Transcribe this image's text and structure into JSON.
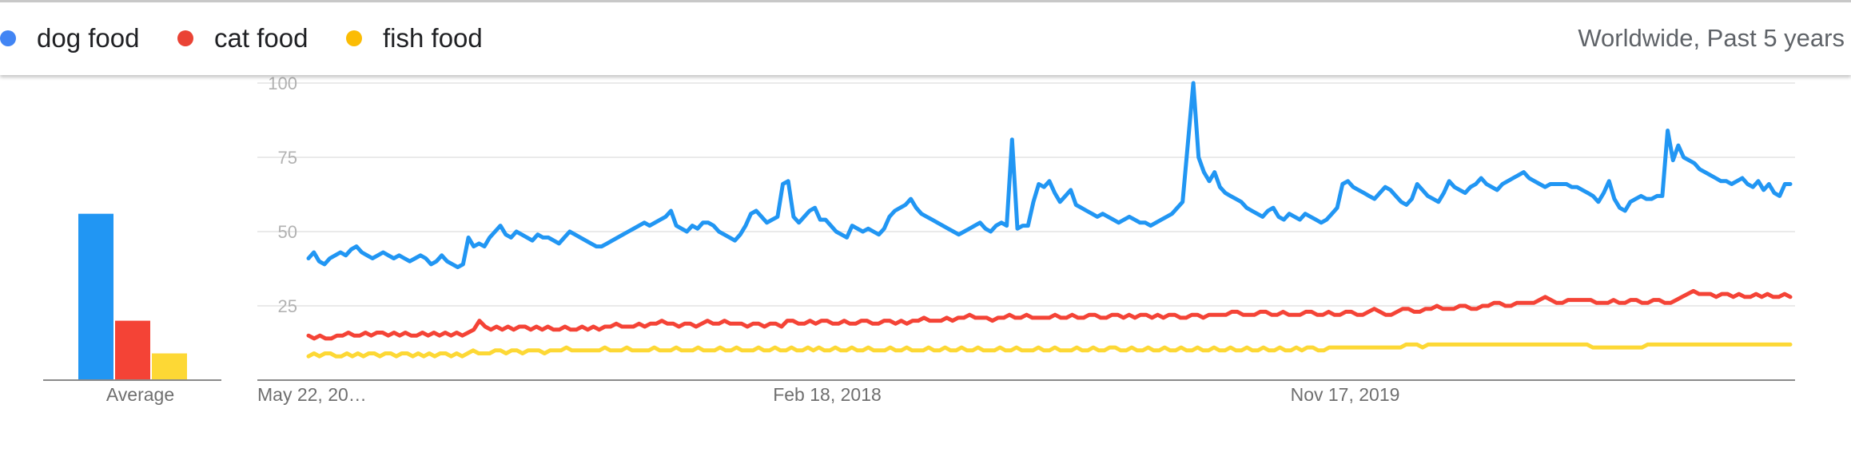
{
  "legend": {
    "scope": "Worldwide, Past 5 years",
    "items": [
      {
        "label": "dog food",
        "color": "#4285f4"
      },
      {
        "label": "cat food",
        "color": "#ea4335"
      },
      {
        "label": "fish food",
        "color": "#fbbc04"
      }
    ]
  },
  "chart_data": [
    {
      "type": "bar",
      "categories": [
        "dog food",
        "cat food",
        "fish food"
      ],
      "values": [
        56,
        20,
        9
      ],
      "xlabel": "Average",
      "ylim": [
        0,
        100
      ],
      "colors": [
        "#2196f3",
        "#f44336",
        "#fdd835"
      ]
    },
    {
      "type": "line",
      "x_ticks": [
        "May 22, 20…",
        "Feb 18, 2018",
        "Nov 17, 2019"
      ],
      "y_ticks": [
        25,
        50,
        75,
        100
      ],
      "ylim": [
        0,
        100
      ],
      "grid": true,
      "series": [
        {
          "name": "dog food",
          "color": "#2196f3",
          "values": [
            41,
            43,
            40,
            39,
            41,
            42,
            43,
            42,
            44,
            45,
            43,
            42,
            41,
            42,
            43,
            42,
            41,
            42,
            41,
            40,
            41,
            42,
            41,
            39,
            40,
            42,
            40,
            39,
            38,
            39,
            48,
            45,
            46,
            45,
            48,
            50,
            52,
            49,
            48,
            50,
            49,
            48,
            47,
            49,
            48,
            48,
            47,
            46,
            48,
            50,
            49,
            48,
            47,
            46,
            45,
            45,
            46,
            47,
            48,
            49,
            50,
            51,
            52,
            53,
            52,
            53,
            54,
            55,
            57,
            52,
            51,
            50,
            52,
            51,
            53,
            53,
            52,
            50,
            49,
            48,
            47,
            49,
            52,
            56,
            57,
            55,
            53,
            54,
            55,
            66,
            67,
            55,
            53,
            55,
            57,
            58,
            54,
            54,
            52,
            50,
            49,
            48,
            52,
            51,
            50,
            51,
            50,
            49,
            51,
            55,
            57,
            58,
            59,
            61,
            58,
            56,
            55,
            54,
            53,
            52,
            51,
            50,
            49,
            50,
            51,
            52,
            53,
            51,
            50,
            52,
            53,
            52,
            81,
            51,
            52,
            52,
            60,
            66,
            65,
            67,
            63,
            60,
            62,
            64,
            59,
            58,
            57,
            56,
            55,
            56,
            55,
            54,
            53,
            54,
            55,
            54,
            53,
            53,
            52,
            53,
            54,
            55,
            56,
            58,
            60,
            80,
            100,
            75,
            70,
            67,
            70,
            65,
            63,
            62,
            61,
            60,
            58,
            57,
            56,
            55,
            57,
            58,
            55,
            54,
            56,
            55,
            54,
            56,
            55,
            54,
            53,
            54,
            56,
            58,
            66,
            67,
            65,
            64,
            63,
            62,
            61,
            63,
            65,
            64,
            62,
            60,
            59,
            61,
            66,
            64,
            62,
            61,
            60,
            63,
            67,
            65,
            64,
            63,
            65,
            66,
            68,
            66,
            65,
            64,
            66,
            67,
            68,
            69,
            70,
            68,
            67,
            66,
            65,
            66,
            66,
            66,
            66,
            65,
            65,
            64,
            63,
            62,
            60,
            63,
            67,
            61,
            58,
            57,
            60,
            61,
            62,
            61,
            61,
            62,
            62,
            84,
            74,
            79,
            75,
            74,
            73,
            71,
            70,
            69,
            68,
            67,
            67,
            66,
            67,
            68,
            66,
            65,
            67,
            64,
            66,
            63,
            62,
            66,
            66
          ]
        },
        {
          "name": "cat food",
          "color": "#f44336",
          "values": [
            15,
            14,
            15,
            14,
            14,
            15,
            15,
            16,
            15,
            15,
            16,
            15,
            16,
            16,
            15,
            16,
            15,
            16,
            15,
            15,
            16,
            15,
            16,
            15,
            16,
            15,
            16,
            15,
            16,
            17,
            20,
            18,
            17,
            18,
            17,
            18,
            17,
            18,
            18,
            17,
            18,
            17,
            18,
            17,
            17,
            18,
            17,
            17,
            18,
            17,
            18,
            17,
            18,
            18,
            19,
            18,
            18,
            18,
            19,
            18,
            19,
            19,
            20,
            19,
            19,
            18,
            19,
            19,
            18,
            19,
            20,
            19,
            19,
            20,
            19,
            19,
            19,
            18,
            19,
            19,
            18,
            19,
            19,
            18,
            20,
            20,
            19,
            19,
            20,
            19,
            20,
            20,
            19,
            19,
            20,
            19,
            19,
            20,
            20,
            19,
            19,
            20,
            20,
            19,
            20,
            19,
            20,
            20,
            21,
            20,
            20,
            20,
            21,
            20,
            21,
            21,
            22,
            21,
            21,
            21,
            20,
            21,
            21,
            22,
            21,
            21,
            22,
            21,
            21,
            21,
            21,
            22,
            21,
            21,
            22,
            21,
            21,
            22,
            22,
            21,
            21,
            22,
            22,
            21,
            22,
            21,
            22,
            22,
            21,
            22,
            21,
            22,
            22,
            21,
            21,
            22,
            22,
            21,
            22,
            22,
            22,
            22,
            23,
            23,
            22,
            22,
            22,
            23,
            23,
            22,
            22,
            23,
            22,
            22,
            22,
            23,
            23,
            22,
            22,
            23,
            22,
            22,
            23,
            23,
            22,
            22,
            23,
            24,
            23,
            22,
            22,
            23,
            24,
            24,
            23,
            23,
            24,
            24,
            25,
            24,
            24,
            24,
            25,
            25,
            24,
            24,
            25,
            25,
            26,
            26,
            25,
            25,
            26,
            26,
            26,
            26,
            27,
            28,
            27,
            26,
            26,
            27,
            27,
            27,
            27,
            27,
            26,
            26,
            26,
            27,
            26,
            26,
            27,
            27,
            26,
            26,
            27,
            27,
            26,
            26,
            27,
            28,
            29,
            30,
            29,
            29,
            29,
            28,
            29,
            29,
            28,
            29,
            28,
            28,
            29,
            28,
            29,
            28,
            28,
            29,
            28
          ]
        },
        {
          "name": "fish food",
          "color": "#fdd835",
          "values": [
            8,
            9,
            8,
            9,
            9,
            8,
            8,
            9,
            8,
            9,
            8,
            9,
            9,
            8,
            9,
            9,
            8,
            9,
            9,
            8,
            9,
            8,
            9,
            8,
            9,
            9,
            8,
            9,
            8,
            9,
            10,
            9,
            9,
            9,
            10,
            10,
            9,
            10,
            10,
            9,
            10,
            10,
            10,
            9,
            10,
            10,
            10,
            11,
            10,
            10,
            10,
            10,
            10,
            10,
            11,
            10,
            10,
            10,
            11,
            10,
            10,
            10,
            10,
            11,
            10,
            10,
            10,
            11,
            10,
            10,
            10,
            11,
            10,
            10,
            10,
            11,
            10,
            10,
            11,
            10,
            10,
            10,
            11,
            10,
            10,
            11,
            10,
            10,
            11,
            10,
            10,
            11,
            10,
            11,
            10,
            10,
            11,
            10,
            10,
            11,
            10,
            10,
            11,
            10,
            10,
            10,
            11,
            10,
            10,
            11,
            10,
            10,
            10,
            11,
            10,
            10,
            11,
            10,
            10,
            11,
            10,
            10,
            11,
            10,
            10,
            10,
            11,
            10,
            10,
            11,
            10,
            10,
            10,
            11,
            10,
            10,
            11,
            10,
            10,
            10,
            11,
            10,
            10,
            11,
            10,
            10,
            11,
            11,
            10,
            10,
            11,
            10,
            10,
            11,
            10,
            10,
            11,
            10,
            10,
            11,
            10,
            10,
            11,
            10,
            10,
            11,
            10,
            10,
            11,
            10,
            10,
            11,
            10,
            10,
            11,
            10,
            10,
            11,
            10,
            10,
            11,
            10,
            11,
            11,
            10,
            10,
            11,
            11,
            11,
            11,
            11,
            11,
            11,
            11,
            11,
            11,
            11,
            11,
            11,
            11,
            12,
            12,
            12,
            11,
            12,
            12,
            12,
            12,
            12,
            12,
            12,
            12,
            12,
            12,
            12,
            12,
            12,
            12,
            12,
            12,
            12,
            12,
            12,
            12,
            12,
            12,
            12,
            12,
            12,
            12,
            12,
            12,
            12,
            12,
            11,
            11,
            11,
            11,
            11,
            11,
            11,
            11,
            11,
            11,
            12,
            12,
            12,
            12,
            12,
            12,
            12,
            12,
            12,
            12,
            12,
            12,
            12,
            12,
            12,
            12,
            12,
            12,
            12,
            12,
            12,
            12,
            12,
            12,
            12,
            12,
            12
          ]
        }
      ]
    }
  ]
}
